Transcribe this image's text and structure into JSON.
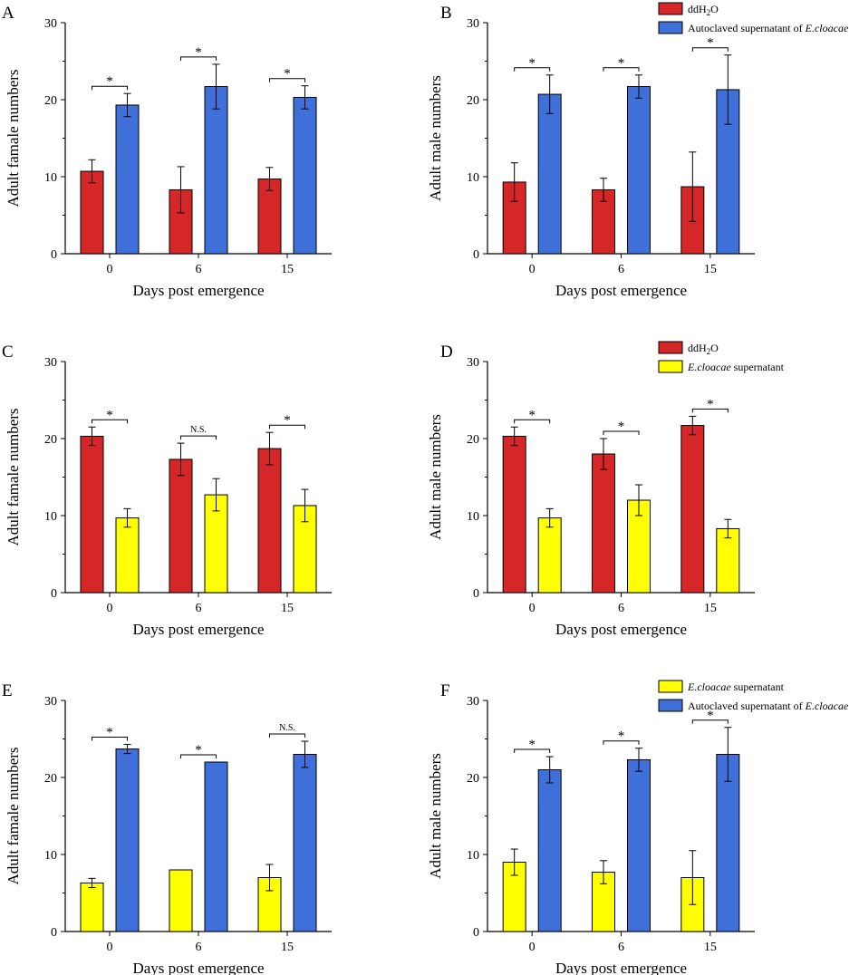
{
  "figure": {
    "colors": {
      "ddH2O": "#d62728",
      "Autoclaved": "#3f6fd8",
      "Supernatant": "#ffff00"
    },
    "legend_labels": {
      "ddH2O": "ddH2O",
      "Autoclaved": "Autoclaved supernatant of E.cloacae",
      "Supernatant": "E.cloacae supernatant"
    }
  },
  "chart_data": [
    {
      "panel": "A",
      "type": "bar",
      "xlabel": "Days post emergence",
      "ylabel": "Adult famale numbers",
      "categories": [
        "0",
        "6",
        "15"
      ],
      "ylim": [
        0,
        30
      ],
      "yticks": [
        0,
        10,
        20,
        30
      ],
      "legend": [],
      "series": [
        {
          "key": "ddH2O",
          "values": [
            10.7,
            8.3,
            9.7
          ],
          "errors": [
            1.5,
            3.0,
            1.5
          ]
        },
        {
          "key": "Autoclaved",
          "values": [
            19.3,
            21.7,
            20.3
          ],
          "errors": [
            1.5,
            2.9,
            1.5
          ]
        }
      ],
      "significance": [
        "*",
        "*",
        "*"
      ]
    },
    {
      "panel": "B",
      "type": "bar",
      "xlabel": "Days post emergence",
      "ylabel": "Adult male numbers",
      "categories": [
        "0",
        "6",
        "15"
      ],
      "ylim": [
        0,
        30
      ],
      "yticks": [
        0,
        10,
        20,
        30
      ],
      "legend": [
        "ddH2O",
        "Autoclaved"
      ],
      "series": [
        {
          "key": "ddH2O",
          "values": [
            9.3,
            8.3,
            8.7
          ],
          "errors": [
            2.5,
            1.5,
            4.5
          ]
        },
        {
          "key": "Autoclaved",
          "values": [
            20.7,
            21.7,
            21.3
          ],
          "errors": [
            2.5,
            1.5,
            4.5
          ]
        }
      ],
      "significance": [
        "*",
        "*",
        "*"
      ]
    },
    {
      "panel": "C",
      "type": "bar",
      "xlabel": "Days post emergence",
      "ylabel": "Adult famale numbers",
      "categories": [
        "0",
        "6",
        "15"
      ],
      "ylim": [
        0,
        30
      ],
      "yticks": [
        0,
        10,
        20,
        30
      ],
      "legend": [],
      "series": [
        {
          "key": "ddH2O",
          "values": [
            20.3,
            17.3,
            18.7
          ],
          "errors": [
            1.2,
            2.1,
            2.1
          ]
        },
        {
          "key": "Supernatant",
          "values": [
            9.7,
            12.7,
            11.3
          ],
          "errors": [
            1.2,
            2.1,
            2.1
          ]
        }
      ],
      "significance": [
        "*",
        "N.S.",
        "*"
      ]
    },
    {
      "panel": "D",
      "type": "bar",
      "xlabel": "Days post emergence",
      "ylabel": "Adult male numbers",
      "categories": [
        "0",
        "6",
        "15"
      ],
      "ylim": [
        0,
        30
      ],
      "yticks": [
        0,
        10,
        20,
        30
      ],
      "legend": [
        "ddH2O",
        "Supernatant"
      ],
      "series": [
        {
          "key": "ddH2O",
          "values": [
            20.3,
            18.0,
            21.7
          ],
          "errors": [
            1.2,
            2.0,
            1.2
          ]
        },
        {
          "key": "Supernatant",
          "values": [
            9.7,
            12.0,
            8.3
          ],
          "errors": [
            1.2,
            2.0,
            1.2
          ]
        }
      ],
      "significance": [
        "*",
        "*",
        "*"
      ]
    },
    {
      "panel": "E",
      "type": "bar",
      "xlabel": "Days post emergence",
      "ylabel": "Adult famale numbers",
      "categories": [
        "0",
        "6",
        "15"
      ],
      "ylim": [
        0,
        30
      ],
      "yticks": [
        0,
        10,
        20,
        30
      ],
      "legend": [],
      "series": [
        {
          "key": "Supernatant",
          "values": [
            6.3,
            8.0,
            7.0
          ],
          "errors": [
            0.6,
            0,
            1.7
          ]
        },
        {
          "key": "Autoclaved",
          "values": [
            23.7,
            22.0,
            23.0
          ],
          "errors": [
            0.6,
            0,
            1.7
          ]
        }
      ],
      "significance": [
        "*",
        "*",
        "N.S."
      ]
    },
    {
      "panel": "F",
      "type": "bar",
      "xlabel": "Days post emergence",
      "ylabel": "Adult male numbers",
      "categories": [
        "0",
        "6",
        "15"
      ],
      "ylim": [
        0,
        30
      ],
      "yticks": [
        0,
        10,
        20,
        30
      ],
      "legend": [
        "Supernatant",
        "Autoclaved"
      ],
      "series": [
        {
          "key": "Supernatant",
          "values": [
            9.0,
            7.7,
            7.0
          ],
          "errors": [
            1.7,
            1.5,
            3.5
          ]
        },
        {
          "key": "Autoclaved",
          "values": [
            21.0,
            22.3,
            23.0
          ],
          "errors": [
            1.7,
            1.5,
            3.5
          ]
        }
      ],
      "significance": [
        "*",
        "*",
        "*"
      ]
    }
  ]
}
